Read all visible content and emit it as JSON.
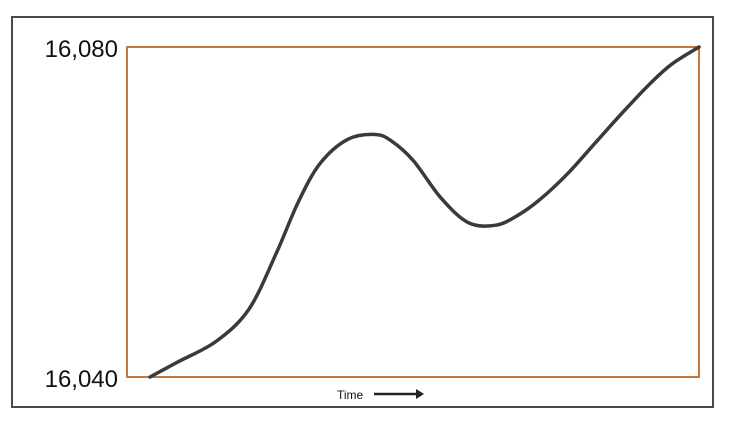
{
  "chart_data": {
    "type": "line",
    "title": "",
    "xlabel": "Time",
    "ylabel": "",
    "ylim": [
      16040,
      16080
    ],
    "y_ticks": [
      "16,080",
      "16,040"
    ],
    "grid": false,
    "colors": {
      "plot_border": "#c8793a",
      "line": "#3a3a3a",
      "frame_border": "#4a4a4a",
      "arrow": "#222222"
    },
    "series": [
      {
        "x": [
          0.0,
          0.05,
          0.12,
          0.18,
          0.23,
          0.27,
          0.31,
          0.36,
          0.41,
          0.44,
          0.48,
          0.53,
          0.58,
          0.63,
          0.67,
          0.71,
          0.76,
          0.81,
          0.86,
          0.91,
          0.95,
          1.0
        ],
        "values": [
          16040.0,
          16041.8,
          16044.3,
          16048.2,
          16055.0,
          16061.2,
          16065.9,
          16068.8,
          16069.4,
          16068.6,
          16066.2,
          16061.7,
          16058.7,
          16058.4,
          16059.6,
          16061.5,
          16064.6,
          16068.3,
          16072.0,
          16075.5,
          16077.9,
          16080.0
        ]
      }
    ]
  },
  "icons": {
    "x_arrow": "right-arrow-icon"
  }
}
